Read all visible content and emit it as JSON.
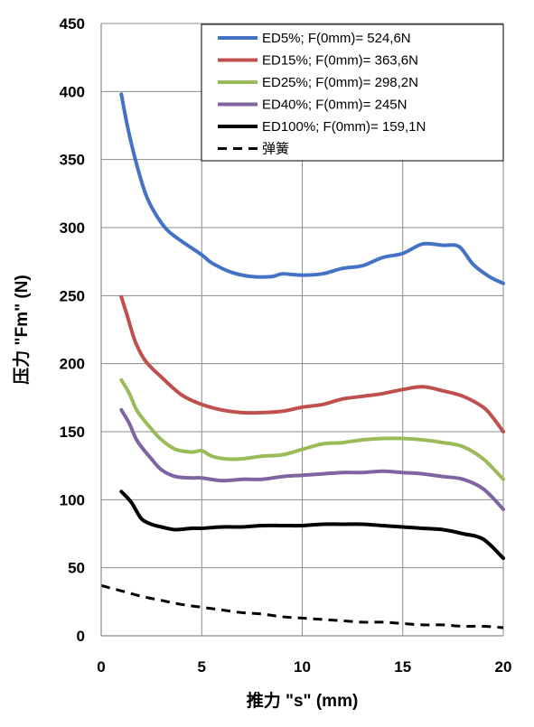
{
  "chart_data": {
    "type": "line",
    "title": "",
    "xlabel": "推力  \"s\" (mm)",
    "ylabel": "压力 \"Fm\" (N)",
    "xlim": [
      0,
      20
    ],
    "ylim": [
      0,
      450
    ],
    "x_ticks": [
      0,
      5,
      10,
      15,
      20
    ],
    "y_ticks": [
      0,
      50,
      100,
      150,
      200,
      250,
      300,
      350,
      400,
      450
    ],
    "grid": true,
    "legend_position": "top-right",
    "series": [
      {
        "name": "ED5%; F(0mm)= 524,6N",
        "color": "#4472C4",
        "dash": "solid",
        "points": [
          [
            1,
            398
          ],
          [
            1.3,
            375
          ],
          [
            1.7,
            350
          ],
          [
            2.2,
            325
          ],
          [
            2.7,
            310
          ],
          [
            3.3,
            298
          ],
          [
            4,
            290
          ],
          [
            5,
            280
          ],
          [
            5.5,
            274
          ],
          [
            6.5,
            267
          ],
          [
            7.5,
            264
          ],
          [
            8.5,
            264
          ],
          [
            9,
            266
          ],
          [
            10,
            265
          ],
          [
            11,
            266
          ],
          [
            12,
            270
          ],
          [
            13,
            272
          ],
          [
            14,
            278
          ],
          [
            15,
            281
          ],
          [
            16,
            288
          ],
          [
            17,
            287
          ],
          [
            17.8,
            286
          ],
          [
            18.5,
            273
          ],
          [
            19.3,
            264
          ],
          [
            20,
            259
          ]
        ]
      },
      {
        "name": "ED15%; F(0mm)= 363,6N",
        "color": "#C0504D",
        "dash": "solid",
        "points": [
          [
            1,
            249
          ],
          [
            1.3,
            235
          ],
          [
            1.7,
            216
          ],
          [
            2.2,
            202
          ],
          [
            3,
            190
          ],
          [
            4,
            177
          ],
          [
            5,
            170
          ],
          [
            6,
            166
          ],
          [
            7,
            164
          ],
          [
            8,
            164
          ],
          [
            9,
            165
          ],
          [
            10,
            168
          ],
          [
            11,
            170
          ],
          [
            12,
            174
          ],
          [
            13,
            176
          ],
          [
            14,
            178
          ],
          [
            15,
            181
          ],
          [
            16,
            183
          ],
          [
            17,
            180
          ],
          [
            18,
            176
          ],
          [
            19,
            168
          ],
          [
            19.5,
            160
          ],
          [
            20,
            150
          ]
        ]
      },
      {
        "name": "ED25%; F(0mm)= 298,2N",
        "color": "#9BBB59",
        "dash": "solid",
        "points": [
          [
            1,
            188
          ],
          [
            1.4,
            178
          ],
          [
            1.8,
            165
          ],
          [
            2.5,
            152
          ],
          [
            3,
            144
          ],
          [
            3.7,
            137
          ],
          [
            4.5,
            135
          ],
          [
            5,
            136
          ],
          [
            5.5,
            132
          ],
          [
            6.2,
            130
          ],
          [
            7,
            130
          ],
          [
            8,
            132
          ],
          [
            9,
            133
          ],
          [
            10,
            137
          ],
          [
            11,
            141
          ],
          [
            12,
            142
          ],
          [
            13,
            144
          ],
          [
            14,
            145
          ],
          [
            15,
            145
          ],
          [
            16,
            144
          ],
          [
            17,
            142
          ],
          [
            18,
            139
          ],
          [
            19,
            130
          ],
          [
            20,
            115
          ]
        ]
      },
      {
        "name": "ED40%; F(0mm)= 245N",
        "color": "#8064A2",
        "dash": "solid",
        "points": [
          [
            1,
            166
          ],
          [
            1.4,
            156
          ],
          [
            1.8,
            143
          ],
          [
            2.5,
            130
          ],
          [
            3,
            122
          ],
          [
            3.7,
            117
          ],
          [
            4.5,
            116
          ],
          [
            5,
            116
          ],
          [
            6,
            114
          ],
          [
            7,
            115
          ],
          [
            8,
            115
          ],
          [
            9,
            117
          ],
          [
            10,
            118
          ],
          [
            11,
            119
          ],
          [
            12,
            120
          ],
          [
            13,
            120
          ],
          [
            14,
            121
          ],
          [
            15,
            120
          ],
          [
            16,
            119
          ],
          [
            17,
            117
          ],
          [
            18,
            115
          ],
          [
            19,
            108
          ],
          [
            20,
            93
          ]
        ]
      },
      {
        "name": "ED100%; F(0mm)= 159,1N",
        "color": "#000000",
        "dash": "solid",
        "points": [
          [
            1,
            106
          ],
          [
            1.5,
            98
          ],
          [
            2,
            86
          ],
          [
            2.5,
            82
          ],
          [
            3,
            80
          ],
          [
            3.7,
            78
          ],
          [
            4.5,
            79
          ],
          [
            5,
            79
          ],
          [
            6,
            80
          ],
          [
            7,
            80
          ],
          [
            8,
            81
          ],
          [
            9,
            81
          ],
          [
            10,
            81
          ],
          [
            11,
            82
          ],
          [
            12,
            82
          ],
          [
            13,
            82
          ],
          [
            14,
            81
          ],
          [
            15,
            80
          ],
          [
            16,
            79
          ],
          [
            17,
            78
          ],
          [
            18,
            75
          ],
          [
            19,
            71
          ],
          [
            20,
            57
          ]
        ]
      },
      {
        "name": "弹簧",
        "color": "#000000",
        "dash": "dashed",
        "points": [
          [
            0,
            37
          ],
          [
            1,
            33
          ],
          [
            2,
            29
          ],
          [
            3,
            26
          ],
          [
            4,
            23
          ],
          [
            5,
            21
          ],
          [
            6,
            19
          ],
          [
            7,
            17
          ],
          [
            8,
            16
          ],
          [
            9,
            14
          ],
          [
            10,
            13
          ],
          [
            11,
            12
          ],
          [
            12,
            11
          ],
          [
            13,
            10
          ],
          [
            14,
            10
          ],
          [
            15,
            9
          ],
          [
            16,
            8
          ],
          [
            17,
            8
          ],
          [
            18,
            7
          ],
          [
            19,
            7
          ],
          [
            20,
            6
          ]
        ]
      }
    ]
  }
}
